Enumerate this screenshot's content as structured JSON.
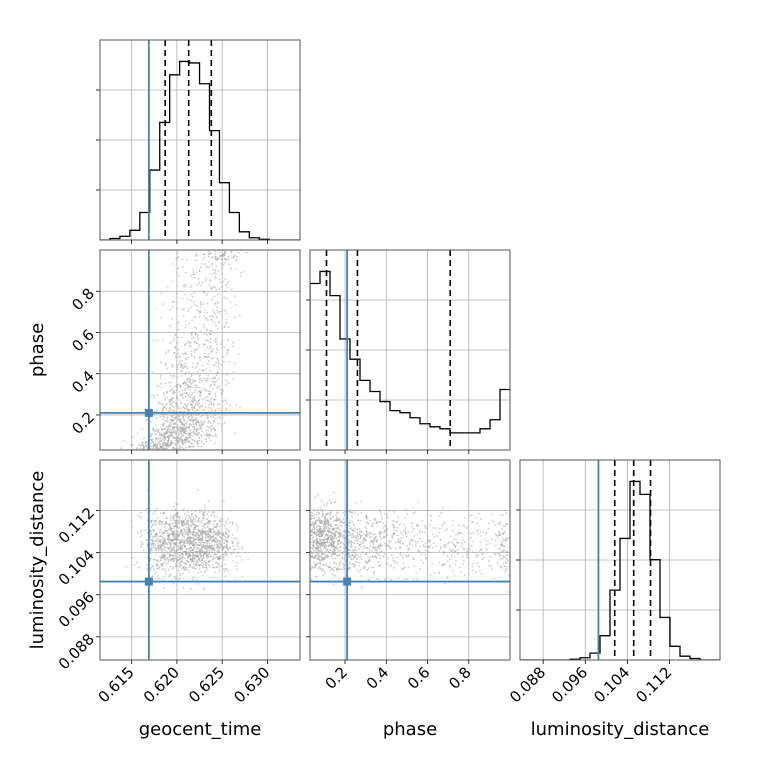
{
  "chart_data": {
    "type": "corner",
    "parameters": [
      "geocent_time",
      "phase",
      "luminosity_distance"
    ],
    "colors": {
      "truth": "#4682b4",
      "line": "#000000",
      "grid": "#b0b0b0",
      "points": "#9e9e9e"
    },
    "grid": true,
    "ranges": {
      "geocent_time": [
        0.6115,
        0.6336
      ],
      "phase": [
        0.03,
        1.0
      ],
      "luminosity_distance": [
        0.0836,
        0.1216
      ]
    },
    "ticks": {
      "geocent_time": [
        0.615,
        0.62,
        0.625,
        0.63
      ],
      "phase": [
        0.2,
        0.4,
        0.6,
        0.8
      ],
      "luminosity_distance": [
        0.088,
        0.096,
        0.104,
        0.112
      ]
    },
    "tick_labels": {
      "geocent_time": [
        "0.615",
        "0.620",
        "0.625",
        "0.630"
      ],
      "phase": [
        "0.2",
        "0.4",
        "0.6",
        "0.8"
      ],
      "luminosity_distance": [
        "0.088",
        "0.096",
        "0.104",
        "0.112"
      ]
    },
    "truths": {
      "geocent_time": 0.6169,
      "phase": 0.21,
      "luminosity_distance": 0.0985
    },
    "quantiles": {
      "geocent_time": [
        0.6187,
        0.6213,
        0.6238
      ],
      "phase": [
        0.11,
        0.26,
        0.71
      ],
      "luminosity_distance": [
        0.1016,
        0.1052,
        0.1084
      ]
    },
    "histograms": {
      "geocent_time": {
        "edges": [
          0.6115,
          0.6126,
          0.6137,
          0.6148,
          0.6159,
          0.617,
          0.6181,
          0.6192,
          0.6203,
          0.6214,
          0.6225,
          0.6236,
          0.6247,
          0.6258,
          0.6269,
          0.628,
          0.6291,
          0.6302,
          0.6313,
          0.6324,
          0.6336
        ],
        "counts": [
          0,
          2,
          5,
          13,
          37,
          94,
          158,
          222,
          240,
          238,
          210,
          147,
          77,
          37,
          11,
          3,
          1,
          0,
          0,
          0
        ]
      },
      "phase": {
        "edges": [
          0.03,
          0.0785,
          0.127,
          0.1755,
          0.224,
          0.2725,
          0.321,
          0.3695,
          0.418,
          0.4665,
          0.515,
          0.5635,
          0.612,
          0.6605,
          0.709,
          0.7575,
          0.806,
          0.8545,
          0.903,
          0.9515,
          1.0
        ],
        "counts": [
          165,
          177,
          153,
          110,
          90,
          69,
          58,
          48,
          39,
          37,
          32,
          26,
          23,
          21,
          17,
          17,
          17,
          21,
          30,
          60
        ]
      },
      "luminosity_distance": {
        "edges": [
          0.0836,
          0.0855,
          0.0874,
          0.0893,
          0.0912,
          0.0931,
          0.095,
          0.0969,
          0.0988,
          0.1007,
          0.1026,
          0.1045,
          0.1064,
          0.1083,
          0.1102,
          0.1121,
          0.114,
          0.1159,
          0.1178,
          0.1197,
          0.1216
        ],
        "counts": [
          0,
          0,
          0,
          0,
          0,
          1,
          3,
          9,
          32,
          92,
          160,
          235,
          218,
          132,
          56,
          18,
          5,
          2,
          0,
          0
        ]
      }
    }
  }
}
